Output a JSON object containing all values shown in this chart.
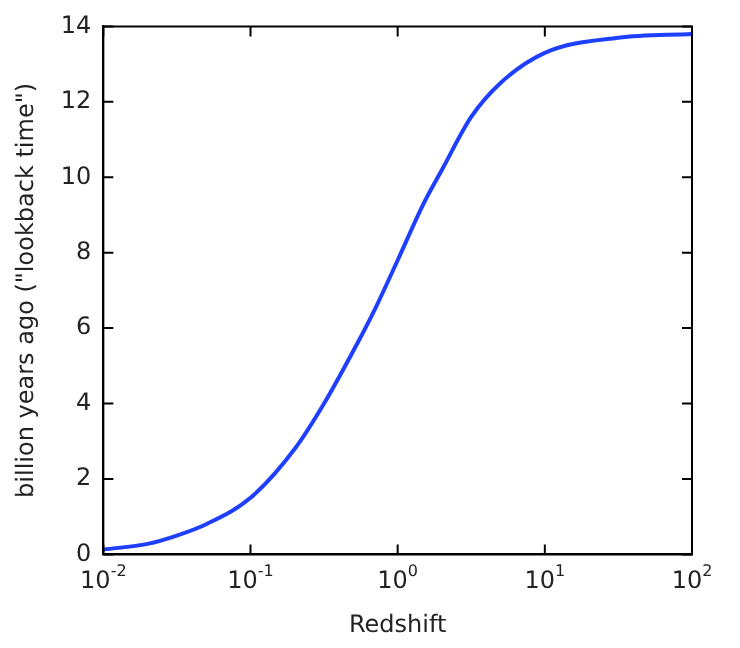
{
  "chart_data": {
    "type": "line",
    "xlabel": "Redshift",
    "ylabel": "billion years ago (\"lookback time\")",
    "log": "x",
    "x": [
      0.01,
      0.02,
      0.0316,
      0.05,
      0.1,
      0.2,
      0.316,
      0.5,
      0.7,
      1,
      1.5,
      2,
      3.16,
      5,
      10,
      31.6,
      100
    ],
    "series": [
      {
        "color": "#1f3fff",
        "values": [
          0.13,
          0.28,
          0.5,
          0.8,
          1.5,
          2.8,
          4.0,
          5.4,
          6.5,
          7.8,
          9.3,
          10.2,
          11.6,
          12.5,
          13.3,
          13.7,
          13.8
        ]
      }
    ],
    "xlim": [
      0.01,
      100
    ],
    "xticks": [
      {
        "value": 0.01,
        "label": "10$^{-2}$"
      },
      {
        "value": 0.1,
        "label": "10$^{-1}$"
      },
      {
        "value": 1,
        "label": "10$^{0}$"
      },
      {
        "value": 10,
        "label": "10$^{1}$"
      },
      {
        "value": 100,
        "label": "10$^{2}$"
      }
    ],
    "ylim": [
      0,
      14
    ],
    "yticks": [
      0,
      2,
      4,
      6,
      8,
      10,
      12,
      14
    ],
    "grid": false,
    "legend": false,
    "marker": "none",
    "line_style": "solid"
  }
}
